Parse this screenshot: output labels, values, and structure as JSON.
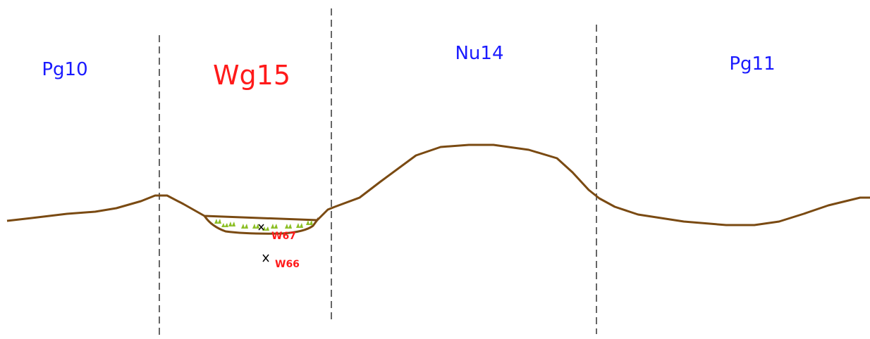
{
  "zones": [
    {
      "label": "Pg10"
    },
    {
      "label": "Wg15"
    },
    {
      "label": "Nu14"
    },
    {
      "label": "Pg11"
    }
  ],
  "wells": [
    {
      "label": "W67"
    },
    {
      "label": "W66"
    }
  ]
}
